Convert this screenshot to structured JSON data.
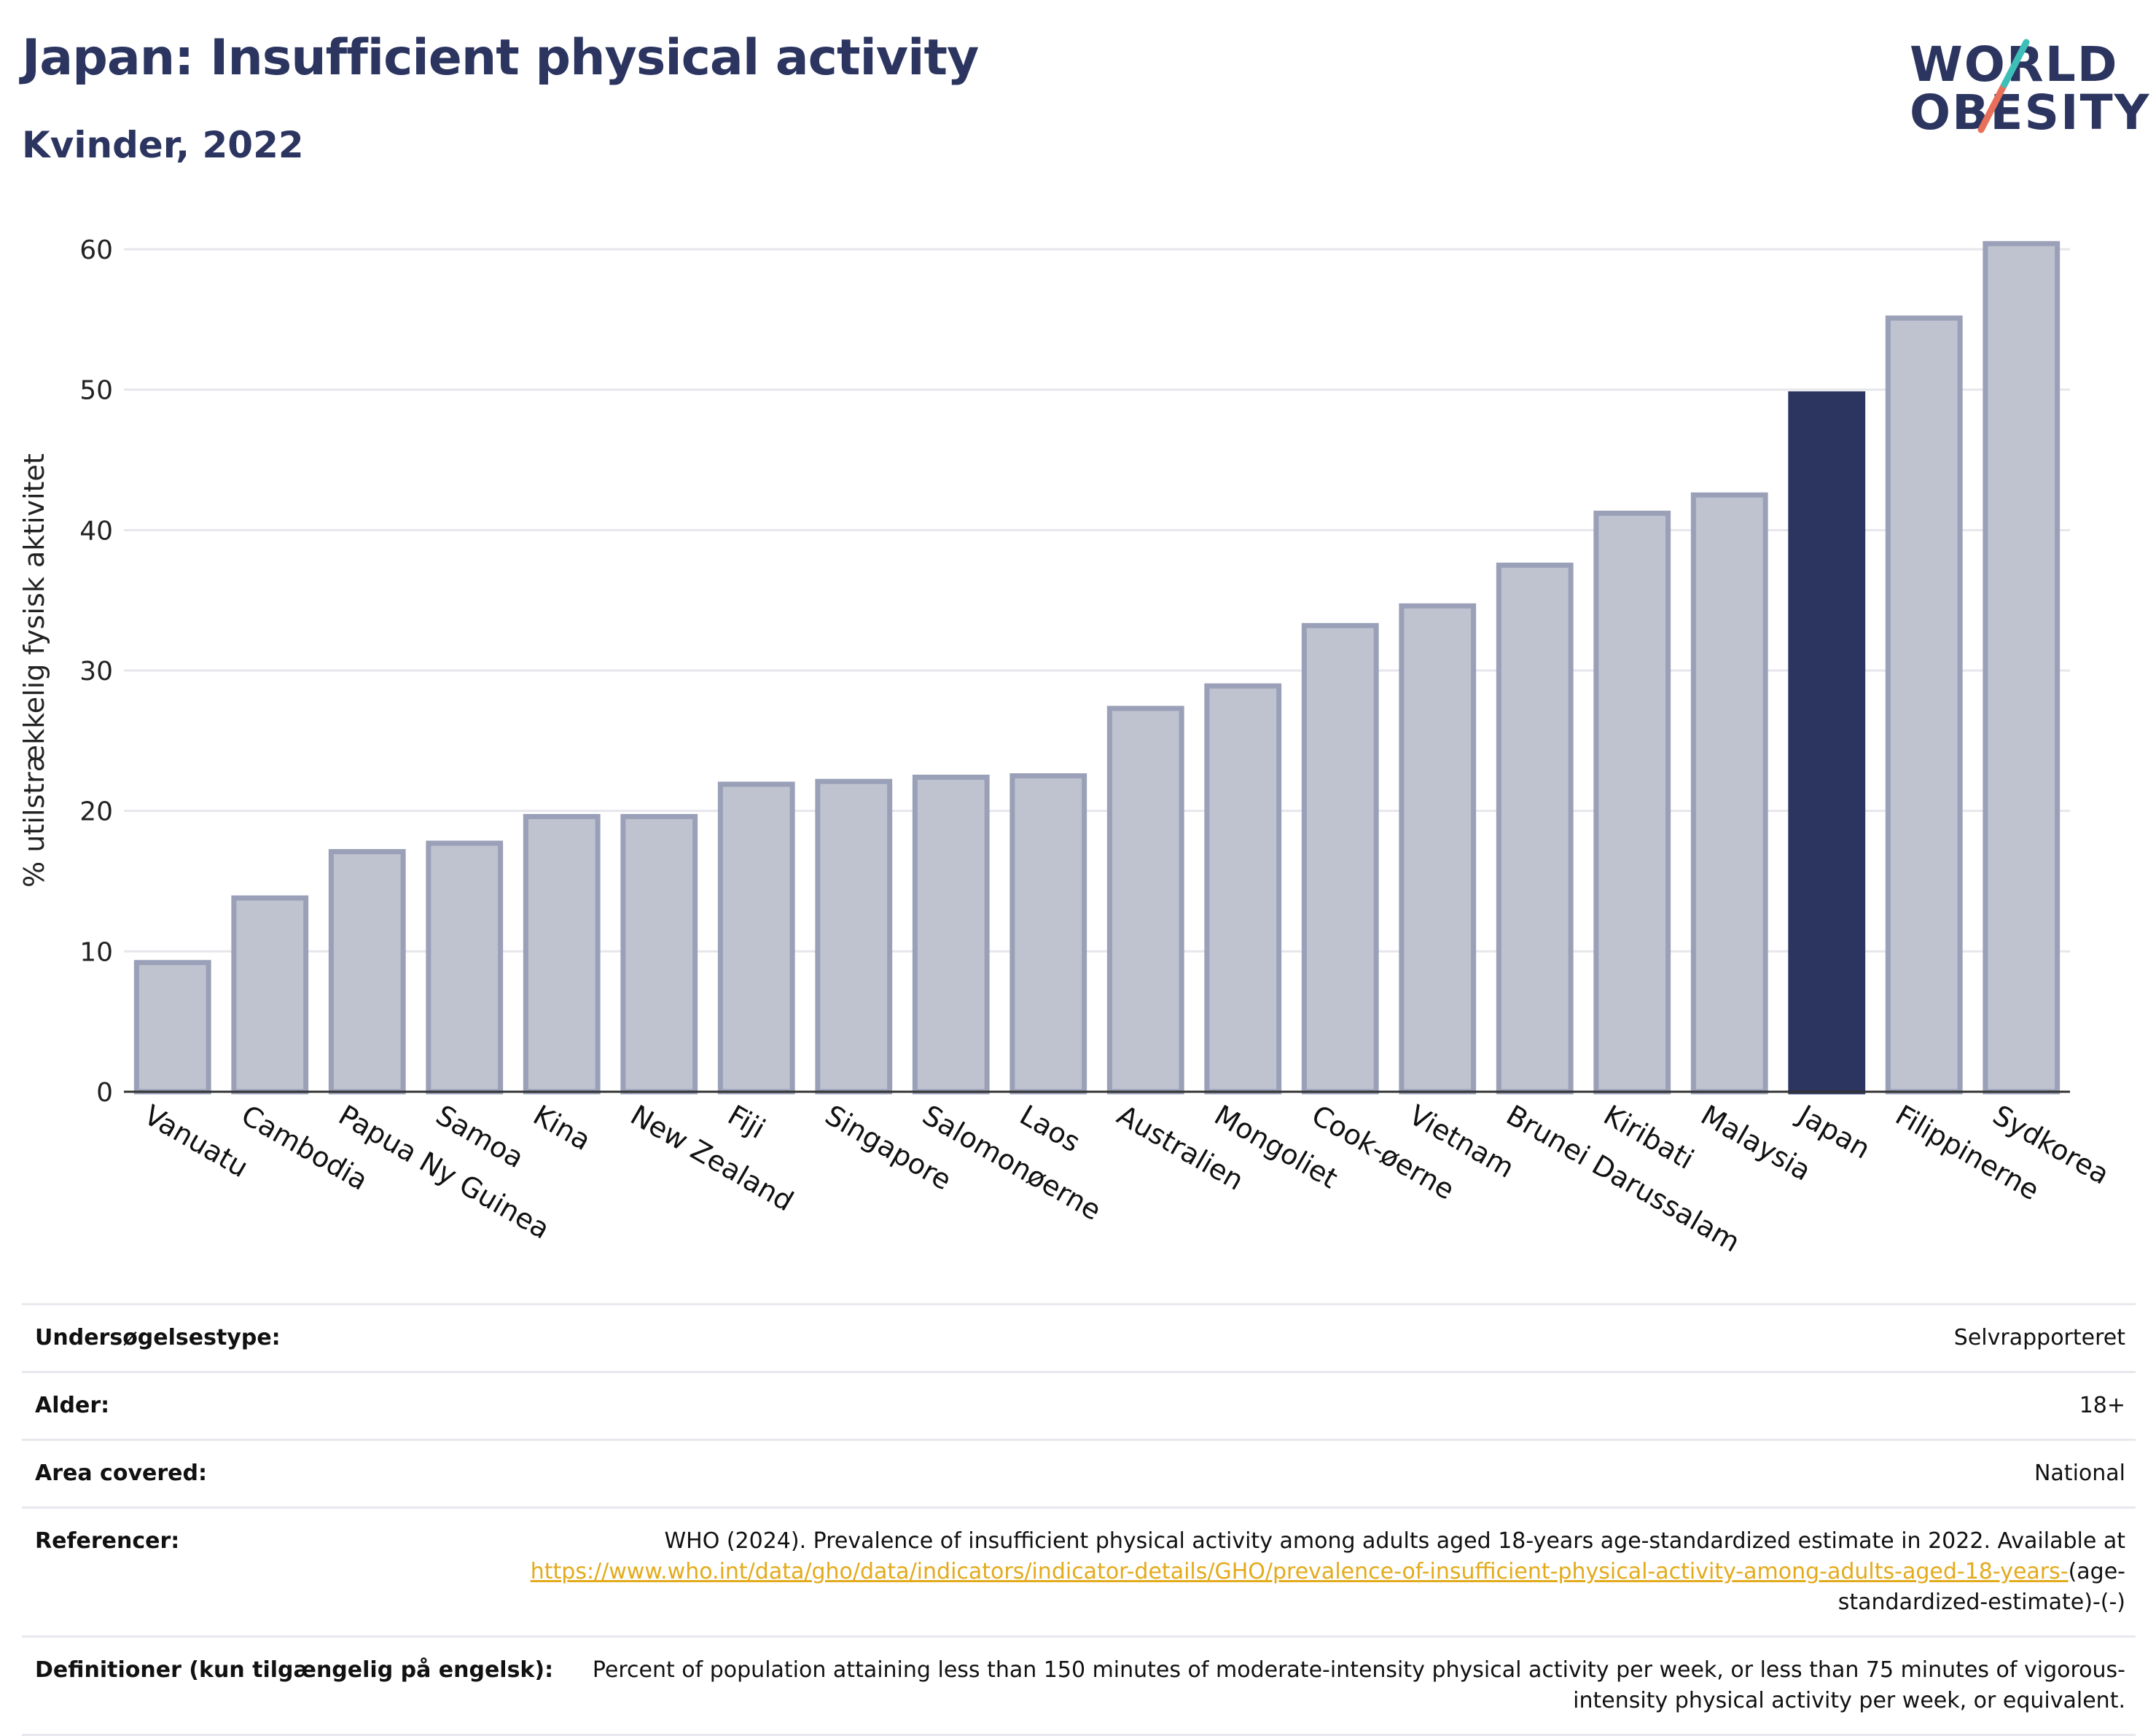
{
  "header": {
    "title": "Japan: Insufficient physical activity",
    "subtitle": "Kvinder, 2022"
  },
  "logo": {
    "line1": "WORLD",
    "line2": "OBESITY",
    "text_color": "#2b3560",
    "slash_colors": [
      "#3dbfb8",
      "#e8705a"
    ]
  },
  "chart_data": {
    "type": "bar",
    "title": "Japan: Insufficient physical activity",
    "subtitle": "Kvinder, 2022",
    "xlabel": "",
    "ylabel": "% utilstrækkelig fysisk aktivitet",
    "ylim": [
      0,
      62
    ],
    "yticks": [
      0,
      10,
      20,
      30,
      40,
      50,
      60
    ],
    "grid": true,
    "categories": [
      "Vanuatu",
      "Cambodia",
      "Papua Ny Guinea",
      "Samoa",
      "Kina",
      "New Zealand",
      "Fiji",
      "Singapore",
      "Salomonøerne",
      "Laos",
      "Australien",
      "Mongoliet",
      "Cook-øerne",
      "Vietnam",
      "Brunei Darussalam",
      "Kiribati",
      "Malaysia",
      "Japan",
      "Filippinerne",
      "Sydkorea"
    ],
    "values": [
      9.2,
      13.8,
      17.1,
      17.7,
      19.6,
      19.6,
      21.9,
      22.1,
      22.4,
      22.5,
      27.3,
      28.9,
      33.2,
      34.6,
      37.5,
      41.2,
      42.5,
      49.7,
      55.1,
      60.4
    ],
    "highlight": "Japan",
    "colors": {
      "bar": "#bfc2cf",
      "bar_border": "#9aa0b8",
      "highlight": "#2b3560",
      "grid": "#e6e6ec",
      "axis": "#333333"
    }
  },
  "info": [
    {
      "label": "Undersøgelsestype:",
      "value": "Selvrapporteret"
    },
    {
      "label": "Alder:",
      "value": "18+"
    },
    {
      "label": "Area covered:",
      "value": "National"
    },
    {
      "label": "Referencer:",
      "value": "WHO (2024). Prevalence of insufficient physical activity among adults aged 18-years age-standardized estimate in 2022. Available at",
      "link": "https://www.who.int/data/gho/data/indicators/indicator-details/GHO/prevalence-of-insufficient-physical-activity-among-adults-aged-18-years-",
      "suffix": "(age-standardized-estimate)-(-)"
    },
    {
      "label": "Definitioner (kun tilgængelig på engelsk):",
      "value": "Percent of population attaining less than 150 minutes of moderate-intensity physical activity per week, or less than 75 minutes of vigorous-intensity physical activity per week, or equivalent."
    }
  ]
}
